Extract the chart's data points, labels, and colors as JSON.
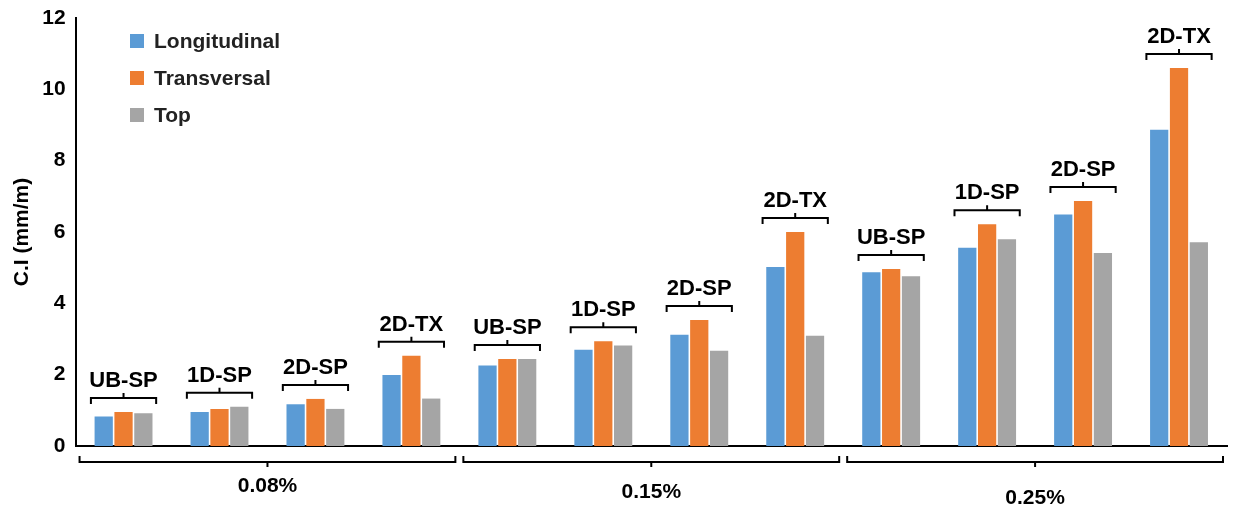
{
  "chart_data": {
    "type": "bar",
    "ylabel": "C.I (mm/m)",
    "categories": [
      "UB-SP",
      "1D-SP",
      "2D-SP",
      "2D-TX",
      "UB-SP",
      "1D-SP",
      "2D-SP",
      "2D-TX",
      "UB-SP",
      "1D-SP",
      "2D-SP",
      "2D-TX"
    ],
    "series": [
      {
        "name": "Longitudinal",
        "color": "#5b9bd5",
        "values": [
          0.83,
          0.95,
          1.17,
          1.99,
          2.26,
          2.7,
          3.12,
          5.02,
          4.87,
          5.56,
          6.49,
          8.87
        ]
      },
      {
        "name": "Transversal",
        "color": "#ed7d31",
        "values": [
          0.95,
          1.04,
          1.32,
          2.53,
          2.44,
          2.94,
          3.53,
          6.0,
          4.96,
          6.22,
          6.87,
          10.6
        ]
      },
      {
        "name": "Top",
        "color": "#a5a5a5",
        "values": [
          0.92,
          1.1,
          1.04,
          1.33,
          2.44,
          2.82,
          2.67,
          3.09,
          4.76,
          5.8,
          5.41,
          5.71
        ]
      }
    ],
    "annotations": [
      "0.08%",
      "0.15%",
      "0.25%"
    ],
    "ylim": [
      0,
      12
    ],
    "yticks": [
      0,
      2,
      4,
      6,
      8,
      10,
      12
    ],
    "grid": false,
    "legend": "top left"
  }
}
